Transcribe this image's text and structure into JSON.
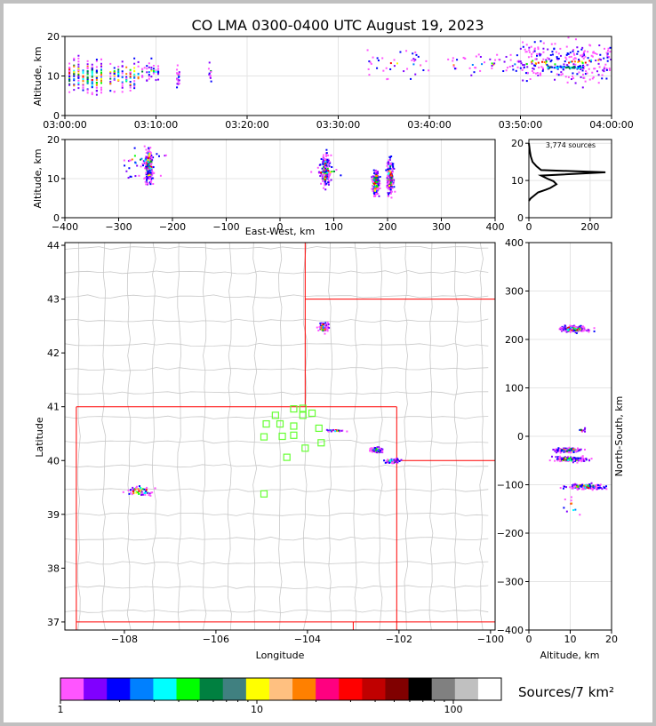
{
  "chart_data": [
    {
      "id": "time_height",
      "type": "scatter",
      "title": "CO LMA 0300-0400 UTC August 19, 2023",
      "xlabel": "",
      "ylabel": "Altitude, km",
      "x_ticks": [
        "03:00:00",
        "03:10:00",
        "03:20:00",
        "03:30:00",
        "03:40:00",
        "03:50:00",
        "04:00:00"
      ],
      "y_ticks": [
        "0",
        "10",
        "20"
      ],
      "xlim_minutes": [
        0,
        60
      ],
      "ylim": [
        0,
        20
      ],
      "grid": true,
      "clusters": [
        {
          "x": [
            0.5,
            4.5
          ],
          "y": [
            4,
            16
          ],
          "n": 180
        },
        {
          "x": [
            5,
            8.5
          ],
          "y": [
            5,
            15
          ],
          "n": 90
        },
        {
          "x": [
            8.5,
            10.5
          ],
          "y": [
            7,
            15
          ],
          "n": 40
        },
        {
          "x": [
            12.3,
            12.6
          ],
          "y": [
            5,
            15
          ],
          "n": 20
        },
        {
          "x": [
            15.8,
            16.1
          ],
          "y": [
            8,
            14
          ],
          "n": 10
        },
        {
          "x": [
            33,
            40
          ],
          "y": [
            8,
            18
          ],
          "n": 40
        },
        {
          "x": [
            42,
            50
          ],
          "y": [
            9,
            17
          ],
          "n": 50
        },
        {
          "x": [
            50,
            60
          ],
          "y": [
            7,
            20
          ],
          "n": 260
        }
      ]
    },
    {
      "id": "ew_altitude",
      "type": "scatter",
      "xlabel": "East-West, km",
      "ylabel": "Altitude, km",
      "x_ticks": [
        "−400",
        "−300",
        "−200",
        "−100",
        "0",
        "100",
        "200",
        "300",
        "400"
      ],
      "y_ticks": [
        "0",
        "10",
        "20"
      ],
      "xlim": [
        -400,
        400
      ],
      "ylim": [
        0,
        20
      ],
      "grid": true,
      "clusters": [
        {
          "x": [
            -255,
            -232
          ],
          "y": [
            7,
            19
          ],
          "n": 240
        },
        {
          "x": [
            -310,
            -190
          ],
          "y": [
            8,
            20
          ],
          "n": 40
        },
        {
          "x": [
            73,
            97
          ],
          "y": [
            6,
            18
          ],
          "n": 200
        },
        {
          "x": [
            55,
            120
          ],
          "y": [
            10,
            14
          ],
          "n": 30
        },
        {
          "x": [
            168,
            188
          ],
          "y": [
            4,
            14
          ],
          "n": 180
        },
        {
          "x": [
            195,
            215
          ],
          "y": [
            4,
            17
          ],
          "n": 180
        }
      ]
    },
    {
      "id": "altitude_histogram",
      "type": "line",
      "annotation": "3,774 sources",
      "x_ticks": [
        "0",
        "200"
      ],
      "y_ticks": [
        "0",
        "10",
        "20"
      ],
      "xlim": [
        0,
        270
      ],
      "ylim": [
        0,
        21
      ],
      "profile": [
        {
          "count": 0,
          "alt": 4.5
        },
        {
          "count": 6,
          "alt": 5.2
        },
        {
          "count": 18,
          "alt": 6
        },
        {
          "count": 30,
          "alt": 6.8
        },
        {
          "count": 55,
          "alt": 7.5
        },
        {
          "count": 70,
          "alt": 8
        },
        {
          "count": 90,
          "alt": 9
        },
        {
          "count": 80,
          "alt": 9.8
        },
        {
          "count": 60,
          "alt": 10.5
        },
        {
          "count": 40,
          "alt": 11.3
        },
        {
          "count": 250,
          "alt": 12.2
        },
        {
          "count": 40,
          "alt": 12.8
        },
        {
          "count": 25,
          "alt": 13.8
        },
        {
          "count": 12,
          "alt": 15
        },
        {
          "count": 6,
          "alt": 16.5
        },
        {
          "count": 3,
          "alt": 18
        },
        {
          "count": 0,
          "alt": 20
        }
      ]
    },
    {
      "id": "plan_view",
      "type": "scatter",
      "xlabel": "Longitude",
      "ylabel": "Latitude",
      "x_ticks": [
        "−108",
        "−106",
        "−104",
        "−102",
        "−100"
      ],
      "y_ticks": [
        "37",
        "38",
        "39",
        "40",
        "41",
        "42",
        "43",
        "44"
      ],
      "xlim": [
        -109.3,
        -99.9
      ],
      "ylim": [
        36.85,
        44.05
      ],
      "clusters": [
        {
          "lon": [
            -103.8,
            -103.5
          ],
          "lat": [
            42.35,
            42.6
          ],
          "n": 80
        },
        {
          "lon": [
            -103.7,
            -103.1
          ],
          "lat": [
            40.53,
            40.58
          ],
          "n": 25
        },
        {
          "lon": [
            -102.7,
            -102.3
          ],
          "lat": [
            40.12,
            40.27
          ],
          "n": 70
        },
        {
          "lon": [
            -102.4,
            -101.9
          ],
          "lat": [
            39.93,
            40.05
          ],
          "n": 60
        },
        {
          "lon": [
            -108.1,
            -107.2
          ],
          "lat": [
            39.28,
            39.58
          ],
          "n": 60
        }
      ],
      "stations": [
        {
          "lon": -104.1,
          "lat": 40.97
        },
        {
          "lon": -103.9,
          "lat": 40.88
        },
        {
          "lon": -104.1,
          "lat": 40.84
        },
        {
          "lon": -104.3,
          "lat": 40.96
        },
        {
          "lon": -104.7,
          "lat": 40.84
        },
        {
          "lon": -104.6,
          "lat": 40.68
        },
        {
          "lon": -104.9,
          "lat": 40.68
        },
        {
          "lon": -104.3,
          "lat": 40.64
        },
        {
          "lon": -103.75,
          "lat": 40.6
        },
        {
          "lon": -104.55,
          "lat": 40.45
        },
        {
          "lon": -104.3,
          "lat": 40.47
        },
        {
          "lon": -104.95,
          "lat": 40.44
        },
        {
          "lon": -103.7,
          "lat": 40.33
        },
        {
          "lon": -104.05,
          "lat": 40.23
        },
        {
          "lon": -104.45,
          "lat": 40.06
        },
        {
          "lon": -104.95,
          "lat": 39.38
        }
      ]
    },
    {
      "id": "ns_altitude",
      "type": "scatter",
      "xlabel": "Altitude, km",
      "ylabel": "North-South, km",
      "x_ticks": [
        "0",
        "10",
        "20"
      ],
      "y_ticks": [
        "−400",
        "−300",
        "−200",
        "−100",
        "0",
        "100",
        "200",
        "300",
        "400"
      ],
      "xlim": [
        0,
        20
      ],
      "ylim": [
        -400,
        400
      ],
      "grid": true,
      "clusters": [
        {
          "x": [
            6,
            16
          ],
          "y": [
            212,
            232
          ],
          "n": 180
        },
        {
          "x": [
            5,
            14
          ],
          "y": [
            -35,
            -22
          ],
          "n": 140
        },
        {
          "x": [
            4,
            16
          ],
          "y": [
            -55,
            -40
          ],
          "n": 160
        },
        {
          "x": [
            7,
            20
          ],
          "y": [
            -112,
            -96
          ],
          "n": 160
        },
        {
          "x": [
            12,
            14
          ],
          "y": [
            8,
            18
          ],
          "n": 10
        },
        {
          "x": [
            7,
            15
          ],
          "y": [
            -170,
            -120
          ],
          "n": 10
        }
      ]
    }
  ],
  "colorbar": {
    "label": "Sources/7 km²",
    "tick_labels": [
      "1",
      "10",
      "100"
    ],
    "colors": [
      "#ff55ff",
      "#8000ff",
      "#0000ff",
      "#0080ff",
      "#00ffff",
      "#00ff00",
      "#008040",
      "#408080",
      "#ffff00",
      "#ffc080",
      "#ff8000",
      "#ff0080",
      "#ff0000",
      "#c00000",
      "#800000",
      "#000000",
      "#808080",
      "#c0c0c0",
      "#ffffff"
    ]
  }
}
